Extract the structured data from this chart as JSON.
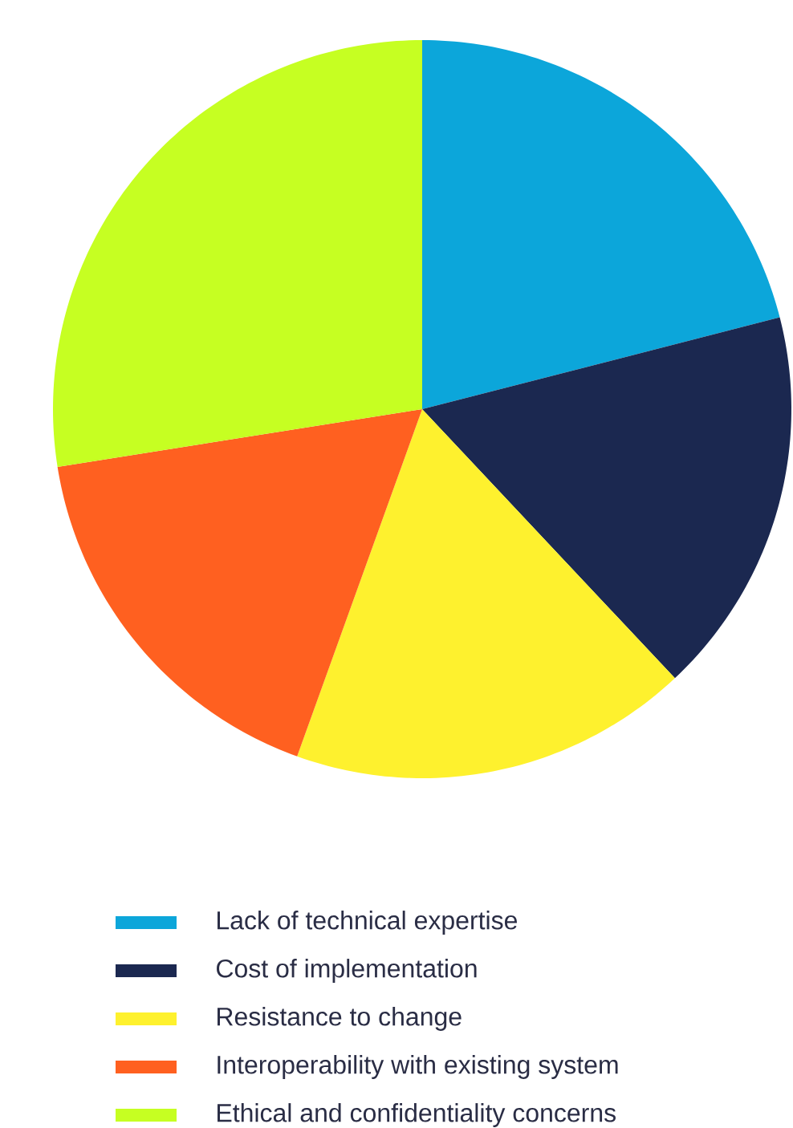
{
  "chart_data": {
    "type": "pie",
    "categories": [
      "Lack of technical expertise",
      "Cost of implementation",
      "Resistance to change",
      "Interoperability with existing system",
      "Ethical and confidentiality concerns"
    ],
    "values": [
      21,
      17,
      17.5,
      17,
      27.5
    ],
    "colors": [
      "#0ca6da",
      "#1b2850",
      "#fef12e",
      "#ff6020",
      "#c6ff22"
    ],
    "legend": "bottom"
  }
}
